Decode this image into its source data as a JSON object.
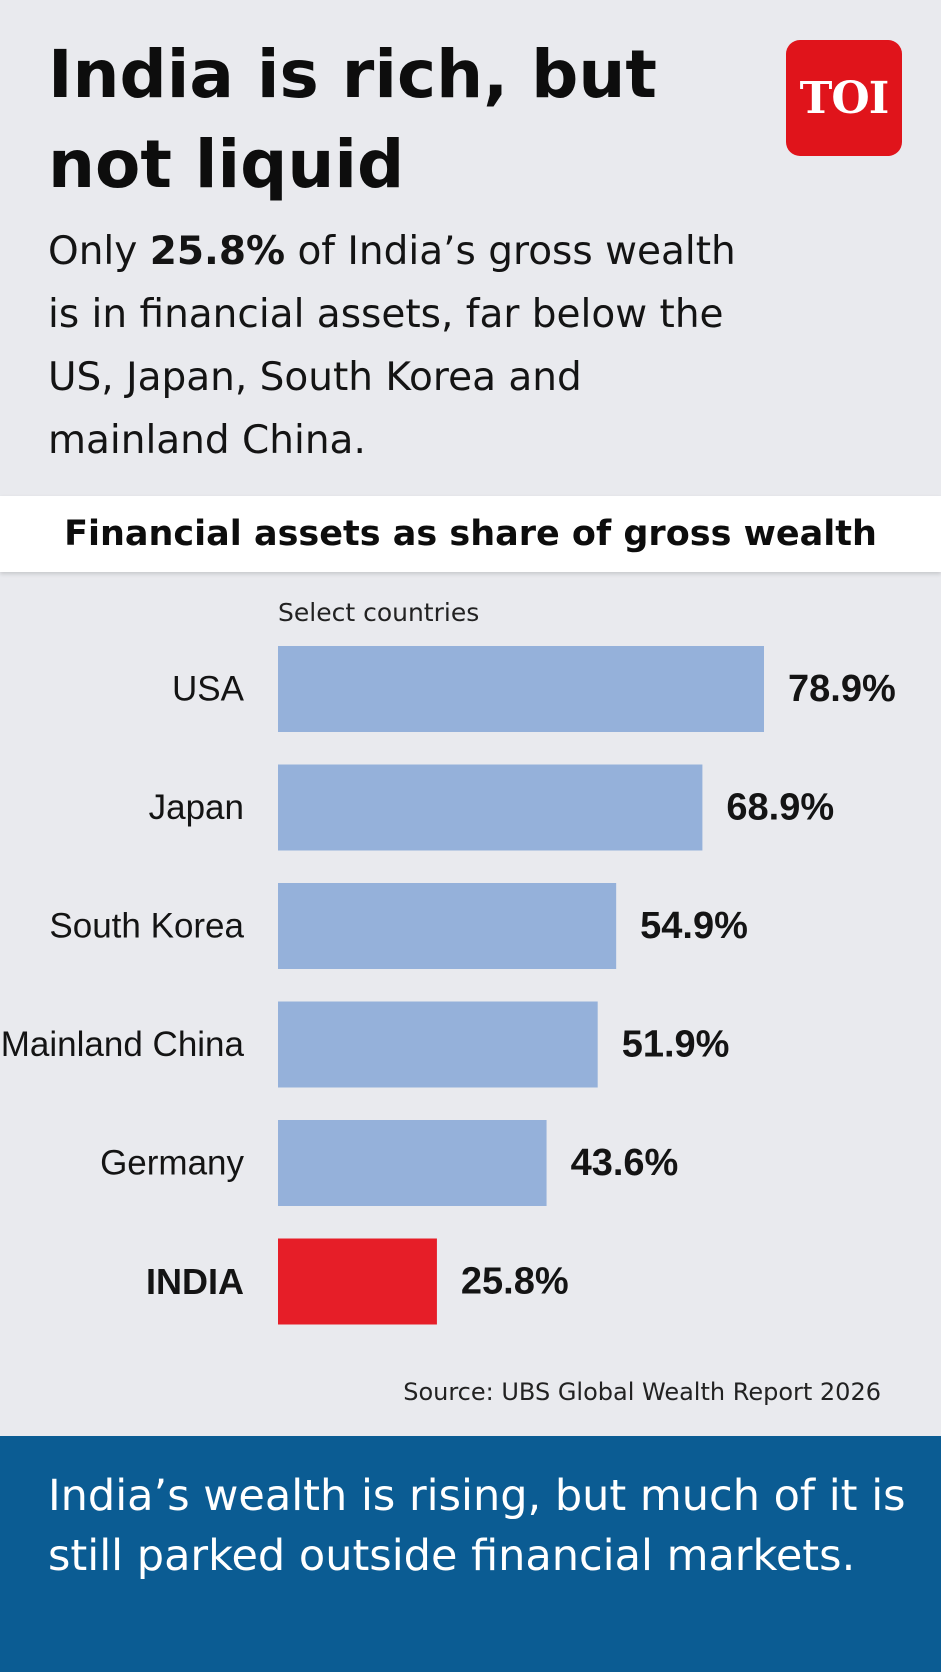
{
  "header": {
    "title": "India is rich, but not liquid",
    "subtitle_prefix": "Only ",
    "subtitle_highlight": "25.8%",
    "subtitle_suffix": " of India’s gross wealth is in financial assets, far below the US, Japan, South Korea and mainland China.",
    "logo_text": "TOI"
  },
  "footer": {
    "source": "Source: UBS Global Wealth Report 2026",
    "takeaway": "India’s wealth is rising, but much of it is still parked outside financial markets."
  },
  "chart_data": {
    "type": "bar",
    "orientation": "horizontal",
    "title": "Financial assets as share of gross wealth",
    "subtitle": "Select countries",
    "categories": [
      "USA",
      "Japan",
      "South Korea",
      "Mainland China",
      "Germany",
      "INDIA"
    ],
    "values": [
      78.9,
      68.9,
      54.9,
      51.9,
      43.6,
      25.8
    ],
    "data_labels": [
      "78.9%",
      "68.9%",
      "54.9%",
      "51.9%",
      "43.6%",
      "25.8%"
    ],
    "unit": "%",
    "highlight_category": "INDIA",
    "colors": {
      "default": "#95b1da",
      "highlight": "#e61e28"
    },
    "grid": false,
    "legend": "none"
  }
}
